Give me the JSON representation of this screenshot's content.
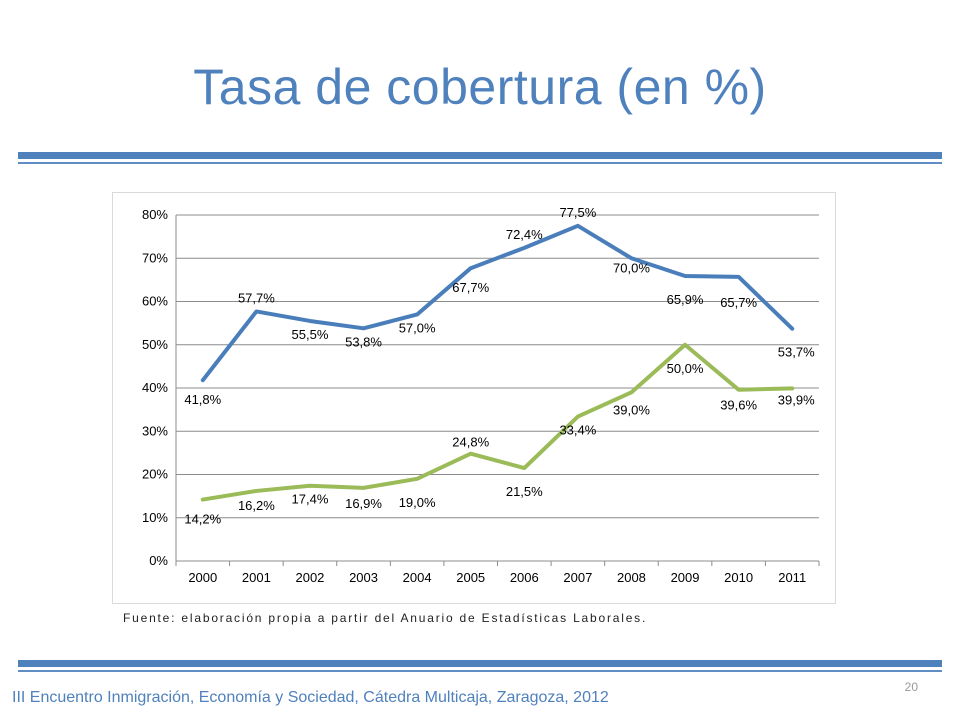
{
  "slide": {
    "title": "Tasa de cobertura (en %)",
    "source": "Fuente: elaboración propia a partir del Anuario de Estadísticas Laborales.",
    "page_number": "20",
    "footer": "III Encuentro Inmigración, Economía y Sociedad, Cátedra Multicaja, Zaragoza, 2012"
  },
  "colors": {
    "accent": "#4f81bd",
    "series_blue": "#4a7ebb",
    "series_green": "#9bbb59",
    "grid": "#8c8c8c"
  },
  "chart_data": {
    "type": "line",
    "title": "",
    "xlabel": "",
    "ylabel": "",
    "x": [
      "2000",
      "2001",
      "2002",
      "2003",
      "2004",
      "2005",
      "2006",
      "2007",
      "2008",
      "2009",
      "2010",
      "2011"
    ],
    "ylim": [
      0,
      80
    ],
    "yticks": [
      0,
      10,
      20,
      30,
      40,
      50,
      60,
      70,
      80
    ],
    "ytick_labels": [
      "0%",
      "10%",
      "20%",
      "30%",
      "40%",
      "50%",
      "60%",
      "70%",
      "80%"
    ],
    "grid": true,
    "legend": "none",
    "series": [
      {
        "color": "#4a7ebb",
        "values": [
          41.8,
          57.7,
          55.5,
          53.8,
          57.0,
          67.7,
          72.4,
          77.5,
          70.0,
          65.9,
          65.7,
          53.7
        ],
        "labels": [
          "41,8%",
          "57,7%",
          "55,5%",
          "53,8%",
          "57,0%",
          "67,7%",
          "72,4%",
          "77,5%",
          "70,0%",
          "65,9%",
          "65,7%",
          "53,7%"
        ]
      },
      {
        "color": "#9bbb59",
        "values": [
          14.2,
          16.2,
          17.4,
          16.9,
          19.0,
          24.8,
          21.5,
          33.4,
          39.0,
          50.0,
          39.6,
          39.9
        ],
        "labels": [
          "14,2%",
          "16,2%",
          "17,4%",
          "16,9%",
          "19,0%",
          "24,8%",
          "21,5%",
          "33,4%",
          "39,0%",
          "50,0%",
          "39,6%",
          "39,9%"
        ]
      }
    ]
  }
}
